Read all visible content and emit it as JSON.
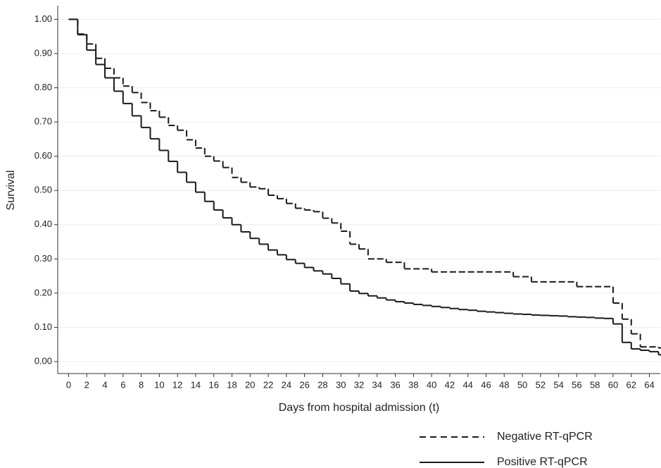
{
  "chart_data": {
    "type": "step",
    "x_label": "Days from hospital admission (t)",
    "y_label": "Survival",
    "x": [
      0,
      1,
      2,
      3,
      4,
      5,
      6,
      7,
      8,
      9,
      10,
      11,
      12,
      13,
      14,
      15,
      16,
      17,
      18,
      19,
      20,
      21,
      22,
      23,
      24,
      25,
      26,
      27,
      28,
      29,
      30,
      31,
      32,
      33,
      34,
      35,
      36,
      37,
      38,
      39,
      40,
      41,
      42,
      43,
      44,
      45,
      46,
      47,
      48,
      49,
      50,
      51,
      52,
      53,
      54,
      55,
      56,
      57,
      58,
      59,
      60,
      61,
      62,
      63,
      64,
      65
    ],
    "series": [
      {
        "name": "Negative RT-qPCR",
        "color": "#1a1a1a",
        "linestyle": "dashed",
        "values": [
          1.0,
          0.957,
          0.928,
          0.886,
          0.857,
          0.829,
          0.805,
          0.786,
          0.757,
          0.733,
          0.714,
          0.69,
          0.676,
          0.648,
          0.624,
          0.6,
          0.586,
          0.567,
          0.538,
          0.524,
          0.51,
          0.505,
          0.486,
          0.476,
          0.462,
          0.448,
          0.443,
          0.438,
          0.419,
          0.405,
          0.381,
          0.343,
          0.329,
          0.3,
          0.3,
          0.29,
          0.29,
          0.271,
          0.271,
          0.271,
          0.262,
          0.262,
          0.262,
          0.262,
          0.262,
          0.262,
          0.262,
          0.262,
          0.262,
          0.248,
          0.248,
          0.233,
          0.233,
          0.233,
          0.233,
          0.233,
          0.219,
          0.219,
          0.219,
          0.219,
          0.171,
          0.124,
          0.081,
          0.043,
          0.043,
          0.04
        ]
      },
      {
        "name": "Positive RT-qPCR",
        "color": "#1a1a1a",
        "linestyle": "solid",
        "values": [
          1.0,
          0.955,
          0.91,
          0.868,
          0.829,
          0.79,
          0.754,
          0.718,
          0.684,
          0.651,
          0.617,
          0.585,
          0.553,
          0.524,
          0.495,
          0.468,
          0.443,
          0.42,
          0.4,
          0.379,
          0.36,
          0.343,
          0.326,
          0.312,
          0.298,
          0.287,
          0.275,
          0.265,
          0.256,
          0.243,
          0.227,
          0.206,
          0.199,
          0.192,
          0.186,
          0.18,
          0.175,
          0.171,
          0.167,
          0.164,
          0.161,
          0.158,
          0.155,
          0.152,
          0.15,
          0.147,
          0.145,
          0.143,
          0.141,
          0.139,
          0.138,
          0.136,
          0.135,
          0.134,
          0.133,
          0.131,
          0.13,
          0.129,
          0.127,
          0.126,
          0.11,
          0.056,
          0.037,
          0.033,
          0.029,
          0.02
        ]
      }
    ],
    "xlim": [
      -1.2,
      65.2
    ],
    "ylim": [
      -0.035,
      1.04
    ],
    "xticks": [
      0,
      2,
      4,
      6,
      8,
      10,
      12,
      14,
      16,
      18,
      20,
      22,
      24,
      26,
      28,
      30,
      32,
      34,
      36,
      38,
      40,
      42,
      44,
      46,
      48,
      50,
      52,
      54,
      56,
      58,
      60,
      62,
      64
    ],
    "yticks": [
      {
        "value": 0,
        "label": "0.00"
      },
      {
        "value": 0.1,
        "label": "0.10"
      },
      {
        "value": 0.2,
        "label": "0.20"
      },
      {
        "value": 0.3,
        "label": "0.30"
      },
      {
        "value": 0.4,
        "label": "0.40"
      },
      {
        "value": 0.5,
        "label": "0.50"
      },
      {
        "value": 0.6,
        "label": "0.60"
      },
      {
        "value": 0.7,
        "label": "0.70"
      },
      {
        "value": 0.8,
        "label": "0.80"
      },
      {
        "value": 0.9,
        "label": "0.90"
      },
      {
        "value": 1,
        "label": "1.00"
      }
    ],
    "grid": true,
    "legend": "bottom-right"
  }
}
